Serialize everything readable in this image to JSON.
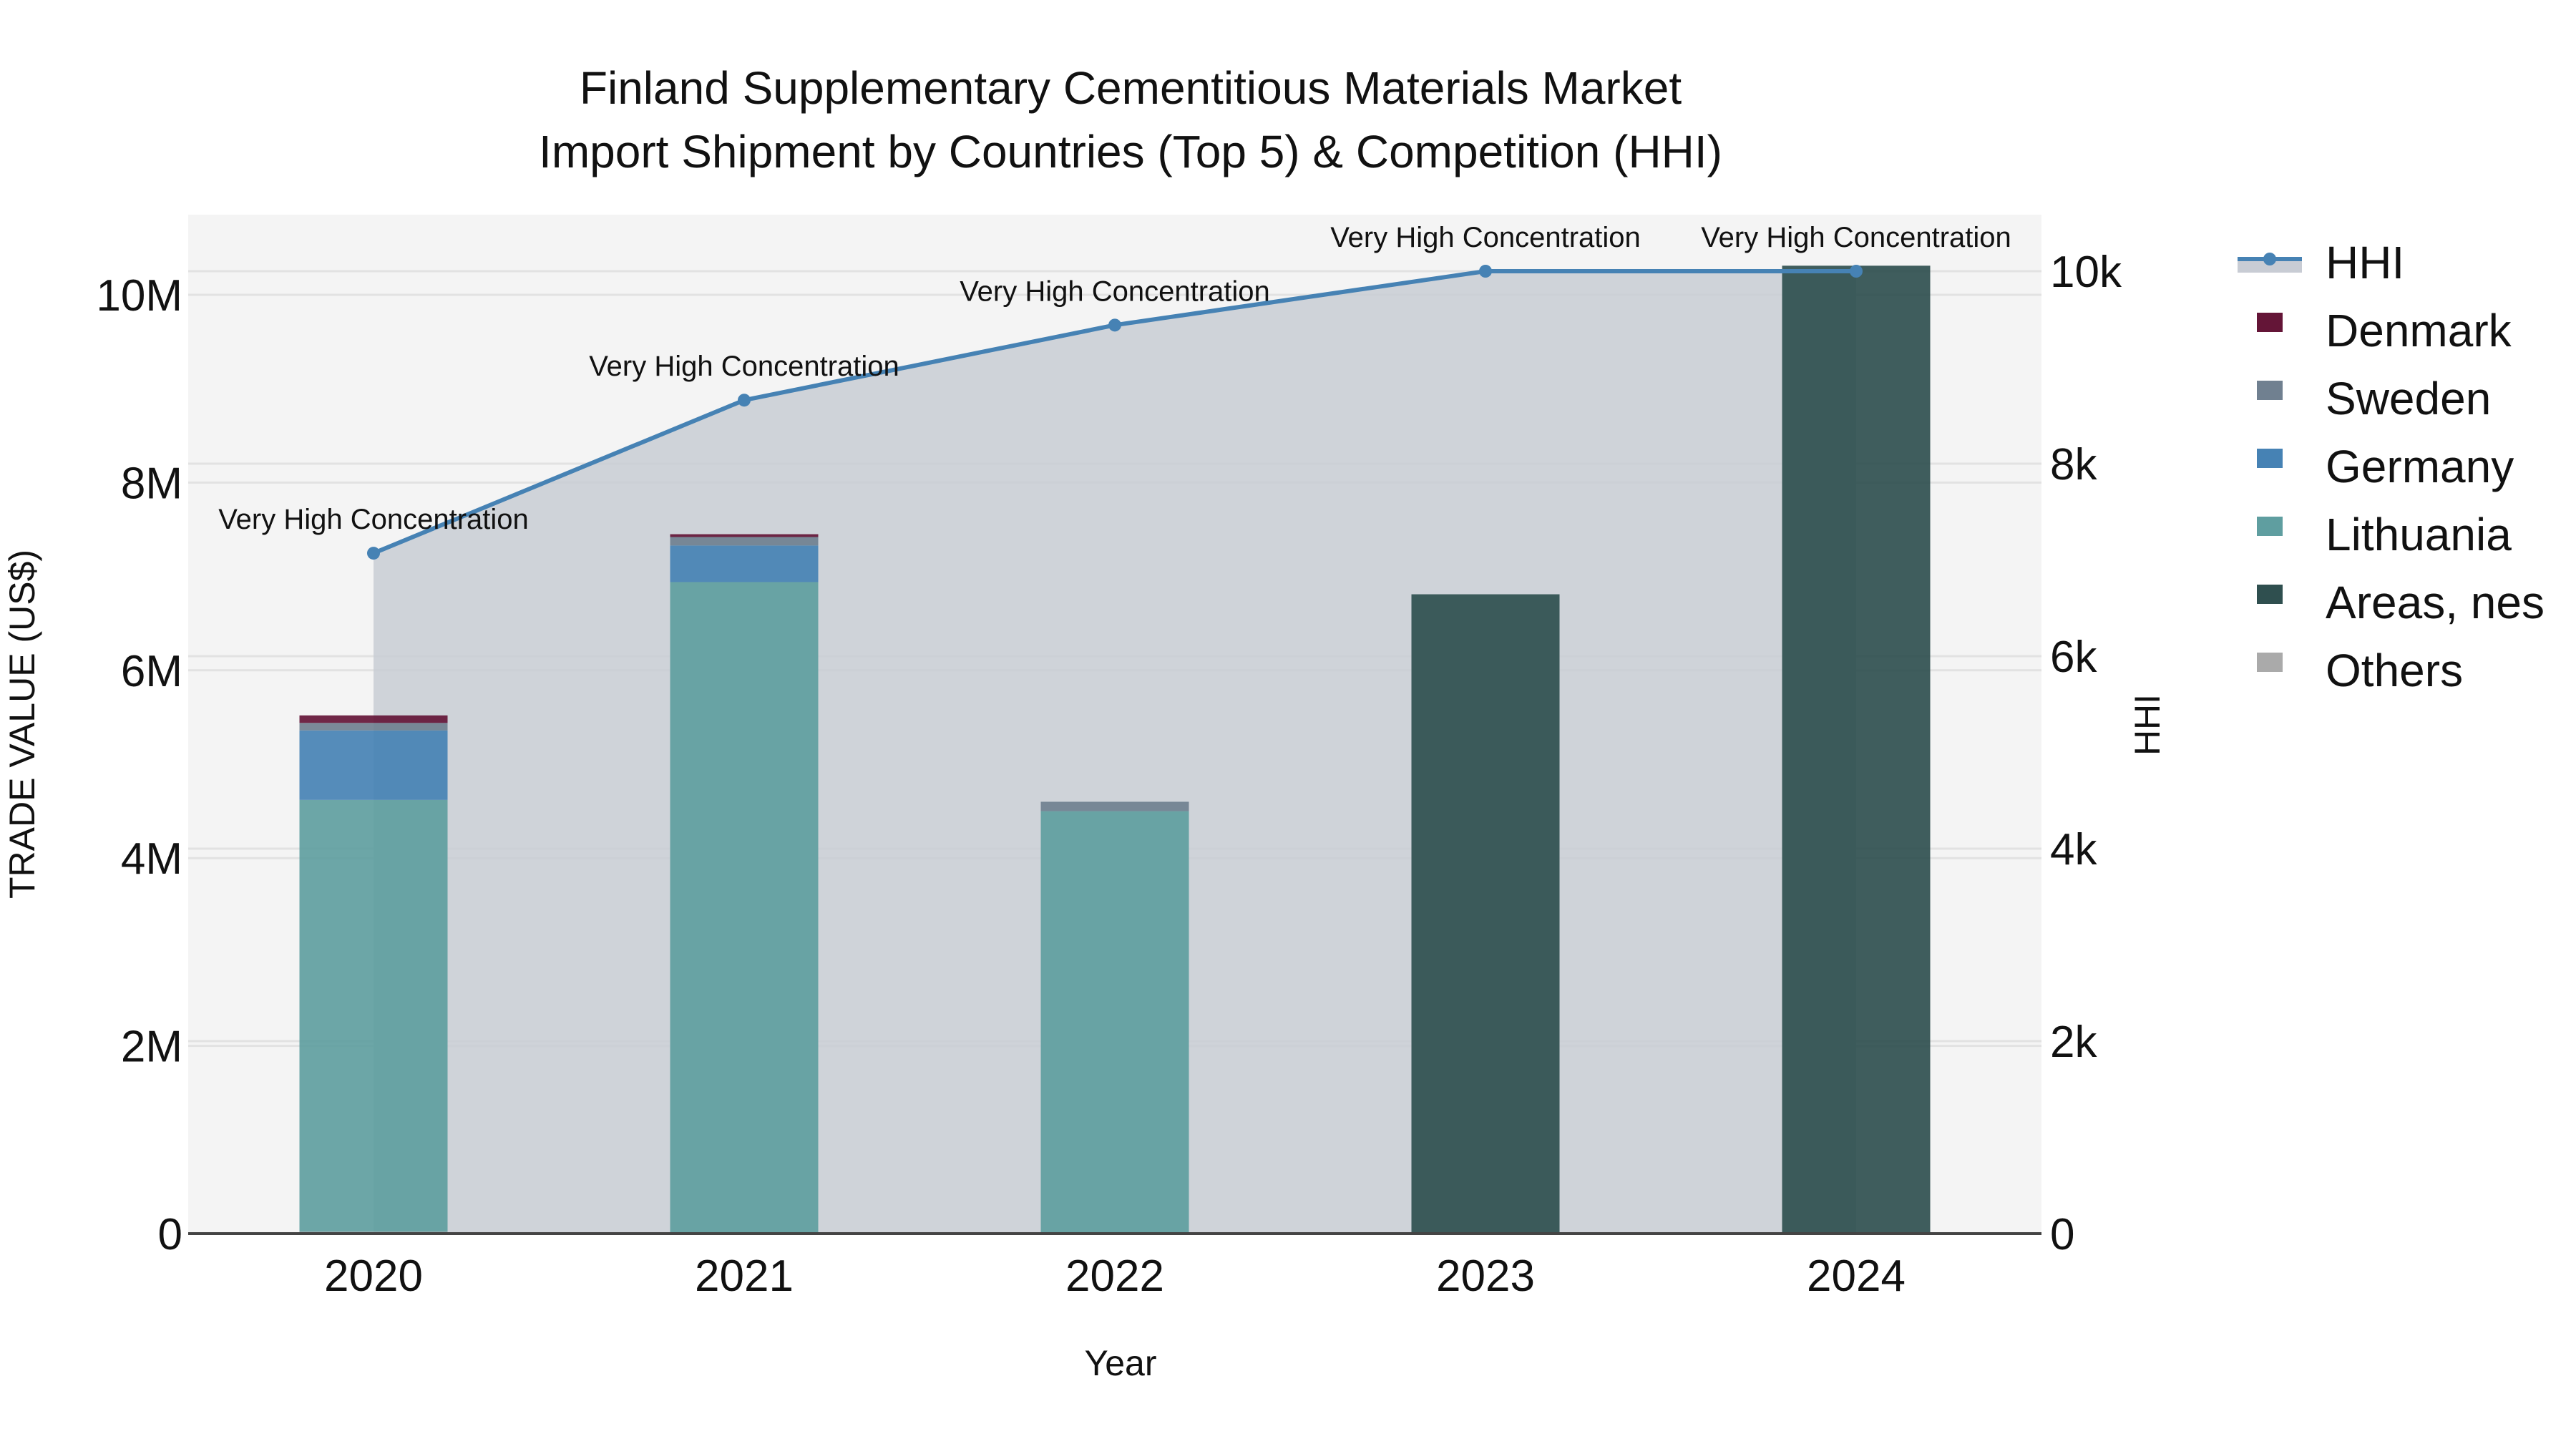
{
  "chart_data": {
    "type": "bar",
    "title": "Finland Supplementary Cementitious Materials Market",
    "subtitle": "Import Shipment by Countries (Top 5) & Competition (HHI)",
    "xlabel": "Year",
    "ylabel": "TRADE VALUE (US$)",
    "y2label": "HHI",
    "categories": [
      "2020",
      "2021",
      "2022",
      "2023",
      "2024"
    ],
    "barmode": "stack",
    "ylim": [
      0,
      10850000
    ],
    "y2lim": [
      0,
      10590
    ],
    "yticks": [
      0,
      2000000,
      4000000,
      6000000,
      8000000,
      10000000
    ],
    "ytick_labels": [
      "0",
      "2M",
      "4M",
      "6M",
      "8M",
      "10M"
    ],
    "y2ticks": [
      0,
      2000,
      4000,
      6000,
      8000,
      10000
    ],
    "y2tick_labels": [
      "0",
      "2k",
      "4k",
      "6k",
      "8k",
      "10k"
    ],
    "grid": true,
    "legend_position": "right",
    "series": [
      {
        "name": "Others",
        "color": "#aaaaaa",
        "values": [
          20000,
          0,
          0,
          0,
          0
        ]
      },
      {
        "name": "Lithuania",
        "color": "#5f9ea0",
        "values": [
          4600000,
          6940000,
          4500000,
          0,
          0
        ]
      },
      {
        "name": "Germany",
        "color": "#4682b4",
        "values": [
          740000,
          390000,
          0,
          0,
          0
        ]
      },
      {
        "name": "Sweden",
        "color": "#708090",
        "values": [
          80000,
          90000,
          100000,
          0,
          0
        ]
      },
      {
        "name": "Denmark",
        "color": "#641537",
        "values": [
          80000,
          30000,
          0,
          0,
          0
        ]
      },
      {
        "name": "Areas, nes",
        "color": "#2f4f4f",
        "values": [
          0,
          0,
          0,
          6810000,
          10310000
        ]
      }
    ],
    "line_series": {
      "name": "HHI",
      "axis": "y2",
      "color": "#4682b4",
      "fill_color": "#c8ccd4",
      "values": [
        7070,
        8660,
        9440,
        10000,
        10000
      ],
      "annotations": [
        "Very High Concentration",
        "Very High Concentration",
        "Very High Concentration",
        "Very High Concentration",
        "Very High Concentration"
      ]
    },
    "legend_order": [
      "HHI",
      "Denmark",
      "Sweden",
      "Germany",
      "Lithuania",
      "Areas, nes",
      "Others"
    ]
  }
}
